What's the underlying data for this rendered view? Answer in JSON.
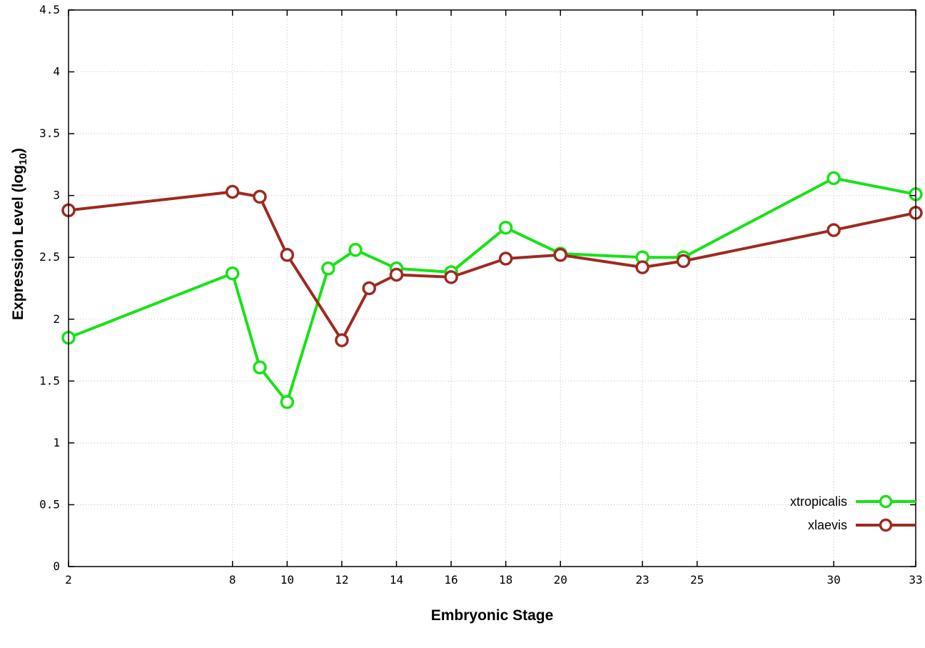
{
  "chart_data": {
    "type": "line",
    "title": "",
    "xlabel": "Embryonic Stage",
    "ylabel": "Expression Level (log10)",
    "ylabel_prefix": "Expression Level (log",
    "ylabel_subscript": "10",
    "ylabel_suffix": ")",
    "xlim": [
      2,
      33
    ],
    "ylim": [
      0,
      4.5
    ],
    "x_ticks": [
      2,
      8,
      10,
      12,
      14,
      16,
      18,
      20,
      23,
      25,
      30,
      33
    ],
    "y_ticks": [
      0,
      0.5,
      1,
      1.5,
      2,
      2.5,
      3,
      3.5,
      4,
      4.5
    ],
    "grid": true,
    "grid_color": "#c0c0c0",
    "border_color": "#000000",
    "background": "#ffffff",
    "legend_position": "bottom-right",
    "series": [
      {
        "name": "xtropicalis",
        "color": "#17e217",
        "marker": "open-circle",
        "x": [
          2,
          8,
          9,
          10,
          11.5,
          12.5,
          14,
          16,
          18,
          20,
          23,
          24.5,
          30,
          33
        ],
        "y": [
          1.85,
          2.37,
          1.61,
          1.33,
          2.41,
          2.56,
          2.41,
          2.38,
          2.74,
          2.53,
          2.5,
          2.5,
          3.14,
          3.01
        ]
      },
      {
        "name": "xlaevis",
        "color": "#9e2a20",
        "marker": "open-circle",
        "x": [
          2,
          8,
          9,
          10,
          12,
          13,
          14,
          16,
          18,
          20,
          23,
          24.5,
          30,
          33
        ],
        "y": [
          2.88,
          3.03,
          2.99,
          2.52,
          1.83,
          2.25,
          2.36,
          2.34,
          2.49,
          2.52,
          2.42,
          2.47,
          2.72,
          2.86
        ]
      }
    ]
  }
}
